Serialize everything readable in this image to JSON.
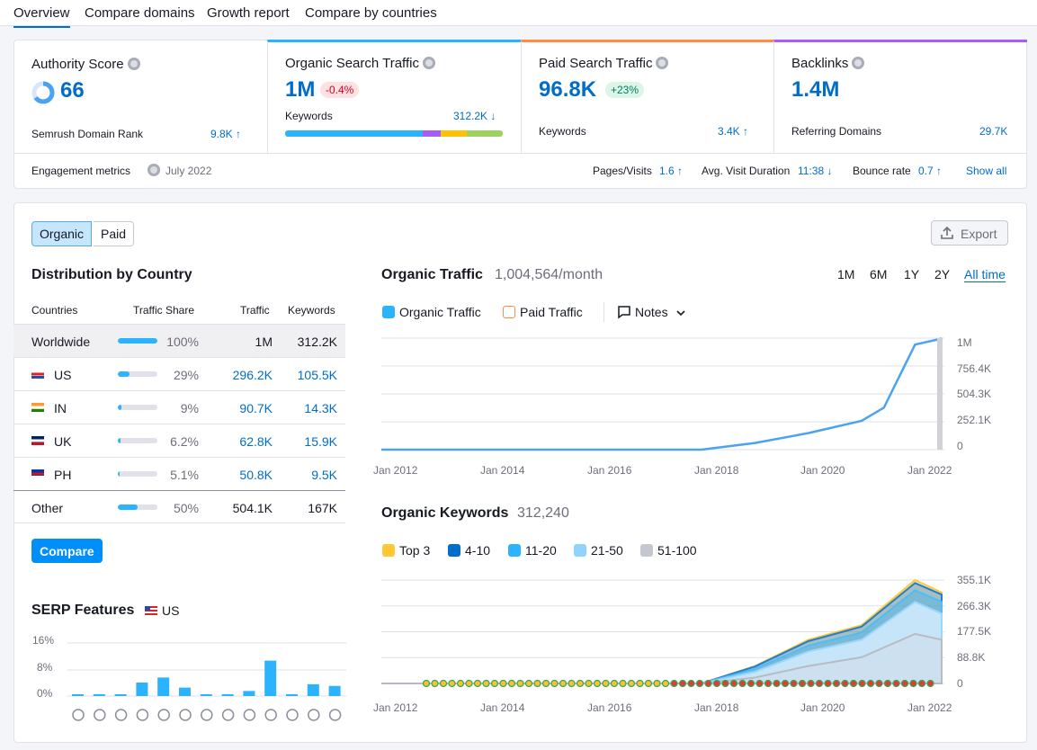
{
  "tabs": [
    "Overview",
    "Compare domains",
    "Growth report",
    "Compare by countries"
  ],
  "authority": {
    "title": "Authority Score",
    "value": "66",
    "rank_label": "Semrush Domain Rank",
    "rank_value": "9.8K ↑"
  },
  "organic": {
    "title": "Organic Search Traffic",
    "value": "1M",
    "change": "-0.4%",
    "kw_label": "Keywords",
    "kw_value": "312.2K ↓"
  },
  "paid": {
    "title": "Paid Search Traffic",
    "value": "96.8K",
    "change": "+23%",
    "kw_label": "Keywords",
    "kw_value": "3.4K ↑"
  },
  "backlinks": {
    "title": "Backlinks",
    "value": "1.4M",
    "ref_label": "Referring Domains",
    "ref_value": "29.7K"
  },
  "engagement": {
    "label": "Engagement metrics",
    "date": "July 2022",
    "pv_label": "Pages/Visits",
    "pv_value": "1.6 ↑",
    "avd_label": "Avg. Visit Duration",
    "avd_value": "11:38 ↓",
    "br_label": "Bounce rate",
    "br_value": "0.7 ↑",
    "show_all": "Show all"
  },
  "toggle": {
    "organic": "Organic",
    "paid": "Paid"
  },
  "export_label": "Export",
  "distribution": {
    "title": "Distribution by Country",
    "headers": {
      "countries": "Countries",
      "share": "Traffic Share",
      "traffic": "Traffic",
      "keywords": "Keywords"
    },
    "rows": [
      {
        "country": "Worldwide",
        "share": "100%",
        "pct": 1.0,
        "traffic": "1M",
        "keywords": "312.2K"
      },
      {
        "country": "US",
        "share": "29%",
        "pct": 0.29,
        "traffic": "296.2K",
        "keywords": "105.5K"
      },
      {
        "country": "IN",
        "share": "9%",
        "pct": 0.09,
        "traffic": "90.7K",
        "keywords": "14.3K"
      },
      {
        "country": "UK",
        "share": "6.2%",
        "pct": 0.062,
        "traffic": "62.8K",
        "keywords": "15.9K"
      },
      {
        "country": "PH",
        "share": "5.1%",
        "pct": 0.051,
        "traffic": "50.8K",
        "keywords": "9.5K"
      },
      {
        "country": "Other",
        "share": "50%",
        "pct": 0.5,
        "traffic": "504.1K",
        "keywords": "167K"
      }
    ],
    "compare_label": "Compare"
  },
  "serp": {
    "title": "SERP Features",
    "country": "US",
    "yticks": [
      "16%",
      "8%",
      "0%"
    ]
  },
  "traffic_chart": {
    "title": "Organic Traffic",
    "value": "1,004,564/month",
    "ranges": [
      "1M",
      "6M",
      "1Y",
      "2Y",
      "All time"
    ],
    "legend": {
      "organic": "Organic Traffic",
      "paid": "Paid Traffic",
      "notes": "Notes"
    },
    "yticks": [
      "1M",
      "756.4K",
      "504.3K",
      "252.1K",
      "0"
    ],
    "xticks": [
      "Jan 2012",
      "Jan 2014",
      "Jan 2016",
      "Jan 2018",
      "Jan 2020",
      "Jan 2022"
    ]
  },
  "keywords_chart": {
    "title": "Organic Keywords",
    "value": "312,240",
    "legend": [
      "Top 3",
      "4-10",
      "11-20",
      "21-50",
      "51-100"
    ],
    "yticks": [
      "355.1K",
      "266.3K",
      "177.5K",
      "88.8K",
      "0"
    ],
    "xticks": [
      "Jan 2012",
      "Jan 2014",
      "Jan 2016",
      "Jan 2018",
      "Jan 2020",
      "Jan 2022"
    ]
  },
  "chart_data": [
    {
      "type": "line",
      "title": "Organic Traffic",
      "x": [
        "Jan 2012",
        "Jan 2014",
        "Jan 2016",
        "Jan 2018",
        "Jan 2019",
        "Jan 2020",
        "Jan 2021",
        "Jun 2021",
        "Jan 2022",
        "Jul 2022"
      ],
      "series": [
        {
          "name": "Organic Traffic",
          "values": [
            0,
            0,
            0,
            0,
            60000,
            150000,
            260000,
            380000,
            950000,
            1004564
          ]
        }
      ],
      "ylim": [
        0,
        1008560
      ]
    },
    {
      "type": "area",
      "title": "Organic Keywords",
      "x": [
        "Jan 2012",
        "Jan 2014",
        "Jan 2016",
        "Jan 2018",
        "Jan 2019",
        "Jan 2020",
        "Jan 2021",
        "Jan 2022",
        "Jul 2022"
      ],
      "series": [
        {
          "name": "Top 3",
          "values": [
            0,
            0,
            0,
            0,
            60000,
            150000,
            200000,
            355000,
            312240
          ]
        },
        {
          "name": "4-10",
          "values": [
            0,
            0,
            0,
            0,
            58000,
            145000,
            195000,
            345000,
            305000
          ]
        },
        {
          "name": "11-20",
          "values": [
            0,
            0,
            0,
            0,
            50000,
            130000,
            175000,
            320000,
            280000
          ]
        },
        {
          "name": "21-50",
          "values": [
            0,
            0,
            0,
            0,
            40000,
            110000,
            150000,
            280000,
            240000
          ]
        },
        {
          "name": "51-100",
          "values": [
            0,
            0,
            0,
            0,
            20000,
            60000,
            90000,
            170000,
            150000
          ]
        }
      ],
      "ylim": [
        0,
        355100
      ]
    },
    {
      "type": "bar",
      "title": "SERP Features",
      "values": [
        0.5,
        0.5,
        0.5,
        4,
        5.5,
        2.5,
        0.5,
        0.5,
        1.5,
        10.5,
        0.5,
        3.5,
        3
      ],
      "ylim": [
        0,
        16
      ]
    }
  ]
}
